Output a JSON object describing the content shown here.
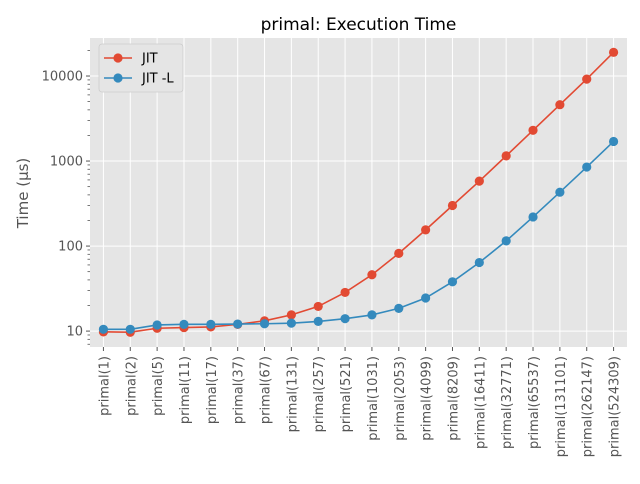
{
  "chart_data": {
    "type": "line",
    "title": "primal: Execution Time",
    "xlabel": "",
    "ylabel": "Time (µs)",
    "yscale": "log",
    "ylim": [
      6.5,
      28000
    ],
    "yticks": [
      10,
      100,
      1000,
      10000
    ],
    "ytick_labels": [
      "10",
      "100",
      "1000",
      "10000"
    ],
    "grid": true,
    "legend_position": "top-left",
    "categories": [
      "primal(1)",
      "primal(2)",
      "primal(5)",
      "primal(11)",
      "primal(17)",
      "primal(37)",
      "primal(67)",
      "primal(131)",
      "primal(257)",
      "primal(521)",
      "primal(1031)",
      "primal(2053)",
      "primal(4099)",
      "primal(8209)",
      "primal(16411)",
      "primal(32771)",
      "primal(65537)",
      "primal(131101)",
      "primal(262147)",
      "primal(524309)"
    ],
    "series": [
      {
        "name": "JIT",
        "color": "#e24a33",
        "values": [
          9.8,
          9.7,
          10.8,
          11.0,
          11.2,
          12.0,
          13.2,
          15.5,
          19.5,
          28.5,
          46,
          82,
          155,
          300,
          580,
          1150,
          2300,
          4600,
          9200,
          19000
        ]
      },
      {
        "name": "JIT -L",
        "color": "#348abd",
        "values": [
          10.5,
          10.5,
          11.8,
          12.0,
          12.0,
          12.1,
          12.2,
          12.4,
          13.0,
          14.0,
          15.5,
          18.5,
          24.5,
          38,
          64,
          115,
          220,
          430,
          850,
          1700
        ]
      }
    ]
  }
}
